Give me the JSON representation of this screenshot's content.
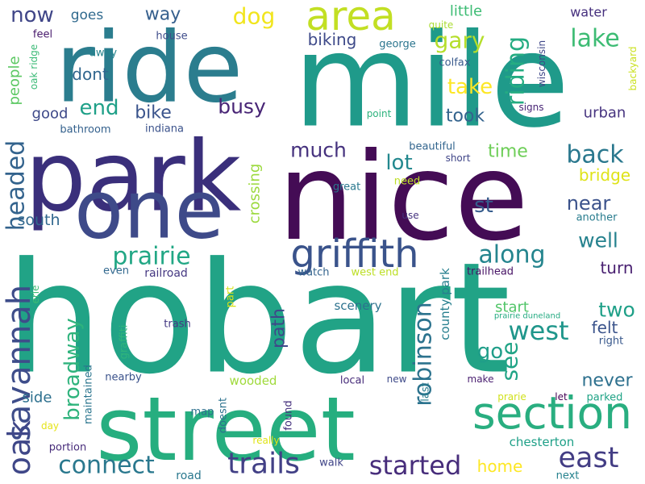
{
  "words": [
    {
      "text": "hobart",
      "color": "#21a386"
    },
    {
      "text": "street",
      "color": "#26ae7f"
    },
    {
      "text": "mile",
      "color": "#1f9a8a"
    },
    {
      "text": "nice",
      "color": "#440c55"
    },
    {
      "text": "ride",
      "color": "#2b7d8e"
    },
    {
      "text": "park",
      "color": "#3a2f7b"
    },
    {
      "text": "one",
      "color": "#3e4a89"
    },
    {
      "text": "area",
      "color": "#c2df23"
    },
    {
      "text": "section",
      "color": "#29ae80"
    },
    {
      "text": "griffith",
      "color": "#3a538b"
    },
    {
      "text": "savannah",
      "color": "#3e4d8a"
    },
    {
      "text": "oak",
      "color": "#3f4788"
    },
    {
      "text": "trails",
      "color": "#424086"
    },
    {
      "text": "east",
      "color": "#433d84"
    },
    {
      "text": "prairie",
      "color": "#22a785"
    },
    {
      "text": "connect",
      "color": "#2a788e"
    },
    {
      "text": "started",
      "color": "#472d7b"
    },
    {
      "text": "broadway",
      "color": "#2eb37c"
    },
    {
      "text": "along",
      "color": "#25858e"
    },
    {
      "text": "back",
      "color": "#2a788e"
    },
    {
      "text": "west",
      "color": "#1f968b"
    },
    {
      "text": "robinson",
      "color": "#2c738e"
    },
    {
      "text": "gary",
      "color": "#b5de2b"
    },
    {
      "text": "lake",
      "color": "#3dbc74"
    },
    {
      "text": "riding",
      "color": "#25ac82"
    },
    {
      "text": "headed",
      "color": "#33638d"
    },
    {
      "text": "end",
      "color": "#1fa088"
    },
    {
      "text": "take",
      "color": "#fde725"
    },
    {
      "text": "dog",
      "color": "#f1e51d"
    },
    {
      "text": "now",
      "color": "#404688"
    },
    {
      "text": "busy",
      "color": "#482576"
    },
    {
      "text": "two",
      "color": "#1fa088"
    },
    {
      "text": "see",
      "color": "#20a486"
    },
    {
      "text": "go",
      "color": "#1f9e89"
    },
    {
      "text": "lot",
      "color": "#23888e"
    },
    {
      "text": "much",
      "color": "#46327e"
    },
    {
      "text": "well",
      "color": "#26828e"
    },
    {
      "text": "near",
      "color": "#3b528b"
    },
    {
      "text": "time",
      "color": "#6ece58"
    },
    {
      "text": "st",
      "color": "#365c8d"
    },
    {
      "text": "never",
      "color": "#2d708e"
    },
    {
      "text": "bike",
      "color": "#3a548c"
    },
    {
      "text": "way",
      "color": "#355f8d"
    },
    {
      "text": "path",
      "color": "#3f4889"
    },
    {
      "text": "crossing",
      "color": "#9bd93c"
    },
    {
      "text": "people",
      "color": "#5cc863"
    },
    {
      "text": "took",
      "color": "#33638d"
    },
    {
      "text": "dont",
      "color": "#31668e"
    },
    {
      "text": "bridge",
      "color": "#dfe318"
    },
    {
      "text": "biking",
      "color": "#3e4a89"
    },
    {
      "text": "start",
      "color": "#52c569"
    },
    {
      "text": "felt",
      "color": "#3a538b"
    },
    {
      "text": "turn",
      "color": "#481f70"
    },
    {
      "text": "home",
      "color": "#fde725"
    },
    {
      "text": "south",
      "color": "#31688e"
    },
    {
      "text": "side",
      "color": "#2d708e"
    },
    {
      "text": "good",
      "color": "#3e4989"
    },
    {
      "text": "urban",
      "color": "#46337f"
    },
    {
      "text": "little",
      "color": "#3dbc74"
    },
    {
      "text": "goes",
      "color": "#306a8e"
    },
    {
      "text": "water",
      "color": "#46307e"
    },
    {
      "text": "county park",
      "color": "#277f8e"
    },
    {
      "text": "maintained",
      "color": "#2b758e"
    },
    {
      "text": "wisconsin",
      "color": "#3f4788"
    },
    {
      "text": "colfax",
      "color": "#38598c"
    },
    {
      "text": "scenery",
      "color": "#2c728e"
    },
    {
      "text": "railroad",
      "color": "#453882"
    },
    {
      "text": "trailhead",
      "color": "#471365"
    },
    {
      "text": "wooded",
      "color": "#9fda3a"
    },
    {
      "text": "chesterton",
      "color": "#1fa088"
    },
    {
      "text": "parked",
      "color": "#20a386"
    },
    {
      "text": "bathroom",
      "color": "#34618d"
    },
    {
      "text": "indiana",
      "color": "#3b528b"
    },
    {
      "text": "erie",
      "color": "#3dbc74"
    },
    {
      "text": "beautiful",
      "color": "#32658e"
    },
    {
      "text": "short",
      "color": "#404688"
    },
    {
      "text": "great",
      "color": "#2a788e"
    },
    {
      "text": "need",
      "color": "#bddf26"
    },
    {
      "text": "use",
      "color": "#46337f"
    },
    {
      "text": "even",
      "color": "#31688e"
    },
    {
      "text": "watch",
      "color": "#33638d"
    },
    {
      "text": "west end",
      "color": "#bddf26"
    },
    {
      "text": "part",
      "color": "#d8e219"
    },
    {
      "text": "trash",
      "color": "#443983"
    },
    {
      "text": "graffiti",
      "color": "#2fb47c"
    },
    {
      "text": "nearby",
      "color": "#3b528b"
    },
    {
      "text": "local",
      "color": "#472c7a"
    },
    {
      "text": "new",
      "color": "#3e4a89"
    },
    {
      "text": "last",
      "color": "#287d8e"
    },
    {
      "text": "make",
      "color": "#481d6f"
    },
    {
      "text": "let",
      "color": "#440154"
    },
    {
      "text": "prarie",
      "color": "#d0e11c"
    },
    {
      "text": "map",
      "color": "#2d708e"
    },
    {
      "text": "doesnt",
      "color": "#2c728e"
    },
    {
      "text": "found",
      "color": "#46327e"
    },
    {
      "text": "really",
      "color": "#dfe318"
    },
    {
      "text": "day",
      "color": "#e5e419"
    },
    {
      "text": "portion",
      "color": "#472c7a"
    },
    {
      "text": "road",
      "color": "#2a788e"
    },
    {
      "text": "walk",
      "color": "#404588"
    },
    {
      "text": "next",
      "color": "#26828e"
    },
    {
      "text": "right",
      "color": "#38588c"
    },
    {
      "text": "prairie duneland",
      "color": "#25ab82"
    },
    {
      "text": "another",
      "color": "#287c8e"
    },
    {
      "text": "point",
      "color": "#2db27d"
    },
    {
      "text": "signs",
      "color": "#482576"
    },
    {
      "text": "backyard",
      "color": "#cae11f"
    },
    {
      "text": "quite",
      "color": "#aadc32"
    },
    {
      "text": "george",
      "color": "#2b758e"
    },
    {
      "text": "feel",
      "color": "#481a6c"
    },
    {
      "text": "house",
      "color": "#3e4c8a"
    },
    {
      "text": "away",
      "color": "#25848e"
    },
    {
      "text": "oak ridge",
      "color": "#3aba76"
    }
  ]
}
